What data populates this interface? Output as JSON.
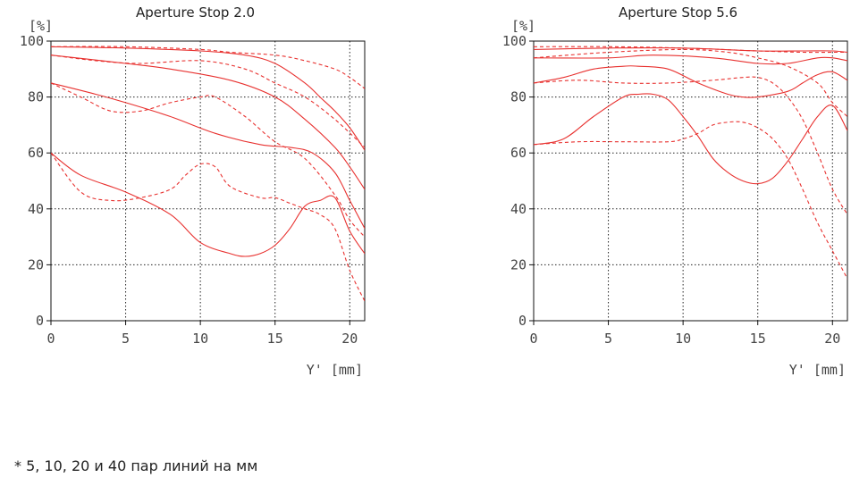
{
  "chart_data": [
    {
      "type": "line",
      "title": "Aperture Stop 2.0",
      "xlabel": "Y'  [mm]",
      "ylabel": "[%]",
      "xlim": [
        0,
        21
      ],
      "ylim": [
        0,
        100
      ],
      "xticks": [
        0,
        5,
        10,
        15,
        20
      ],
      "yticks": [
        0,
        20,
        40,
        60,
        80,
        100
      ],
      "grid": true,
      "color": "#e8312f",
      "series": [
        {
          "style": "solid",
          "x": [
            0,
            5,
            10,
            13,
            15,
            17,
            18,
            19,
            20,
            21
          ],
          "y": [
            98,
            97.5,
            96.5,
            95,
            92,
            85,
            80,
            75,
            69,
            61
          ]
        },
        {
          "style": "dashed",
          "x": [
            0,
            5,
            10,
            12,
            15,
            17,
            19,
            20,
            21
          ],
          "y": [
            98,
            98,
            97,
            96,
            95,
            93,
            90,
            87,
            83
          ]
        },
        {
          "style": "solid",
          "x": [
            0,
            5,
            8,
            12,
            15,
            17,
            19,
            20,
            21
          ],
          "y": [
            95,
            92,
            90,
            86,
            80,
            72,
            62,
            55,
            47
          ]
        },
        {
          "style": "dashed",
          "x": [
            0,
            3,
            6,
            10,
            13,
            15,
            17,
            19,
            21
          ],
          "y": [
            95,
            93,
            92,
            93,
            90,
            85,
            80,
            72,
            62
          ]
        },
        {
          "style": "solid",
          "x": [
            0,
            3,
            5,
            8,
            11,
            14,
            16,
            17.5,
            19,
            20,
            21
          ],
          "y": [
            85,
            81,
            78,
            73,
            67,
            63,
            62,
            60,
            53,
            43,
            33
          ]
        },
        {
          "style": "dashed",
          "x": [
            0,
            2,
            4,
            6,
            8,
            10,
            11,
            13,
            15,
            17,
            19,
            20,
            21
          ],
          "y": [
            85,
            80,
            75,
            75,
            78,
            80,
            80,
            73,
            64,
            58,
            45,
            36,
            30
          ]
        },
        {
          "style": "solid",
          "x": [
            0,
            2,
            5,
            8,
            10,
            12,
            13,
            14,
            15,
            16,
            17,
            18,
            19,
            20,
            21
          ],
          "y": [
            60,
            52,
            46,
            38,
            28,
            24,
            23,
            24,
            27,
            33,
            41,
            43,
            44,
            32,
            24
          ]
        },
        {
          "style": "dashed",
          "x": [
            0,
            2,
            4,
            6,
            8,
            9,
            10,
            11,
            12,
            14,
            15,
            16,
            17,
            18,
            19,
            20,
            21
          ],
          "y": [
            60,
            46,
            43,
            44,
            47,
            52,
            56,
            55,
            48,
            44,
            44,
            42,
            40,
            38,
            33,
            18,
            7
          ]
        }
      ]
    },
    {
      "type": "line",
      "title": "Aperture Stop 5.6",
      "xlabel": "Y'  [mm]",
      "ylabel": "[%]",
      "xlim": [
        0,
        21
      ],
      "ylim": [
        0,
        100
      ],
      "xticks": [
        0,
        5,
        10,
        15,
        20
      ],
      "yticks": [
        0,
        20,
        40,
        60,
        80,
        100
      ],
      "grid": true,
      "color": "#e8312f",
      "series": [
        {
          "style": "solid",
          "x": [
            0,
            5,
            10,
            15,
            18,
            20,
            21
          ],
          "y": [
            97,
            97.5,
            97.5,
            96.5,
            96.5,
            96.5,
            96
          ]
        },
        {
          "style": "dashed",
          "x": [
            0,
            5,
            10,
            15,
            18,
            20,
            21
          ],
          "y": [
            98,
            98,
            97.5,
            96.5,
            96,
            96,
            96
          ]
        },
        {
          "style": "solid",
          "x": [
            0,
            5,
            8,
            12,
            15,
            17,
            19,
            20,
            21
          ],
          "y": [
            94,
            94,
            95,
            94,
            92,
            92,
            94,
            94,
            93
          ]
        },
        {
          "style": "dashed",
          "x": [
            0,
            5,
            10,
            13,
            15,
            17,
            19,
            20,
            21
          ],
          "y": [
            94,
            96,
            97,
            96,
            94,
            91,
            85,
            78,
            73
          ]
        },
        {
          "style": "solid",
          "x": [
            0,
            2,
            4,
            6,
            7,
            9,
            11,
            13,
            14,
            15,
            17,
            18,
            19,
            20,
            21
          ],
          "y": [
            85,
            87,
            90,
            91,
            91,
            90,
            85,
            81,
            80,
            80,
            82,
            85,
            88,
            89,
            86
          ]
        },
        {
          "style": "dashed",
          "x": [
            0,
            3,
            6,
            9,
            12,
            14,
            15,
            16,
            17,
            18,
            19,
            20,
            21
          ],
          "y": [
            85,
            86,
            85,
            85,
            86,
            87,
            87,
            85,
            80,
            72,
            60,
            47,
            38
          ]
        },
        {
          "style": "solid",
          "x": [
            0,
            2,
            4,
            6,
            7,
            8,
            9,
            10,
            11,
            12,
            13,
            14,
            15,
            16,
            17,
            18,
            19,
            20,
            21
          ],
          "y": [
            63,
            65,
            73,
            80,
            81,
            81,
            79,
            73,
            66,
            58,
            53,
            50,
            49,
            51,
            57,
            65,
            73,
            77,
            68
          ]
        },
        {
          "style": "dashed",
          "x": [
            0,
            3,
            6,
            9,
            10,
            11,
            12,
            13,
            14,
            15,
            16,
            17,
            18,
            19,
            20,
            21
          ],
          "y": [
            63,
            64,
            64,
            64,
            65,
            67,
            70,
            71,
            71,
            69,
            65,
            58,
            47,
            35,
            25,
            15
          ]
        }
      ]
    }
  ],
  "footnote": "* 5, 10, 20 и 40 пар линий на мм"
}
